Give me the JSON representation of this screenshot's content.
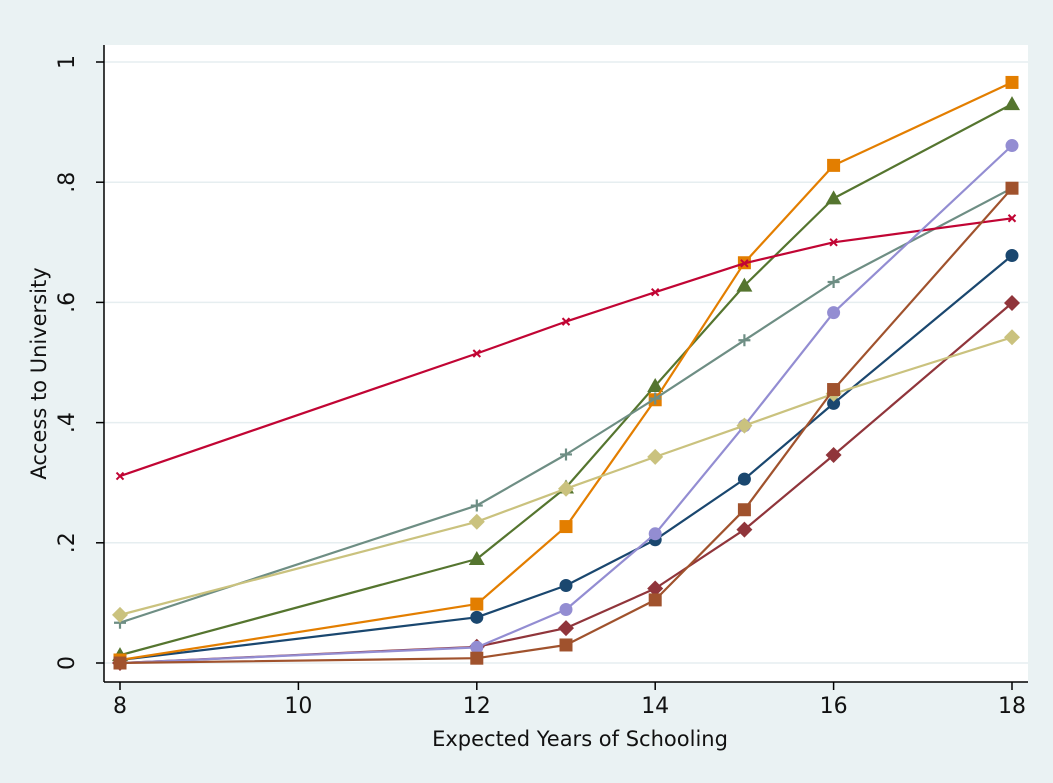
{
  "chart_data": {
    "type": "line",
    "xlabel": "Expected Years of Schooling",
    "ylabel": "Access to University",
    "xlim": [
      8,
      18
    ],
    "ylim": [
      0,
      1
    ],
    "x_ticks": [
      8,
      10,
      12,
      14,
      16,
      18
    ],
    "y_ticks": [
      0,
      0.2,
      0.4,
      0.6,
      0.8,
      1
    ],
    "y_tick_labels": [
      "0",
      ".2",
      ".4",
      ".6",
      ".8",
      "1"
    ],
    "grid": "horizontal",
    "legend": "none",
    "x": [
      8,
      12,
      13,
      14,
      15,
      16,
      18
    ],
    "series": [
      {
        "color": "#1a476f",
        "marker": "circle",
        "values": [
          0.005,
          0.076,
          0.129,
          0.205,
          0.306,
          0.432,
          0.678
        ]
      },
      {
        "color": "#90353b",
        "marker": "diamond",
        "values": [
          0.0,
          0.027,
          0.058,
          0.124,
          0.222,
          0.346,
          0.599
        ]
      },
      {
        "color": "#55752f",
        "marker": "triangle",
        "values": [
          0.013,
          0.173,
          0.292,
          0.461,
          0.628,
          0.773,
          0.93
        ]
      },
      {
        "color": "#e37e00",
        "marker": "square",
        "values": [
          0.005,
          0.098,
          0.227,
          0.438,
          0.666,
          0.828,
          0.966
        ]
      },
      {
        "color": "#6e8e84",
        "marker": "plus",
        "values": [
          0.067,
          0.262,
          0.347,
          0.44,
          0.537,
          0.634,
          0.79
        ]
      },
      {
        "color": "#c10534",
        "marker": "x",
        "values": [
          0.311,
          0.515,
          0.568,
          0.617,
          0.665,
          0.7,
          0.74
        ]
      },
      {
        "color": "#938dd2",
        "marker": "circle",
        "values": [
          0.0,
          0.026,
          0.089,
          0.215,
          0.395,
          0.583,
          0.861
        ]
      },
      {
        "color": "#cac27e",
        "marker": "diamond",
        "values": [
          0.08,
          0.235,
          0.29,
          0.343,
          0.395,
          0.448,
          0.542
        ]
      },
      {
        "color": "#a0522d",
        "marker": "square",
        "values": [
          0.0,
          0.008,
          0.03,
          0.105,
          0.255,
          0.455,
          0.79
        ]
      }
    ]
  }
}
